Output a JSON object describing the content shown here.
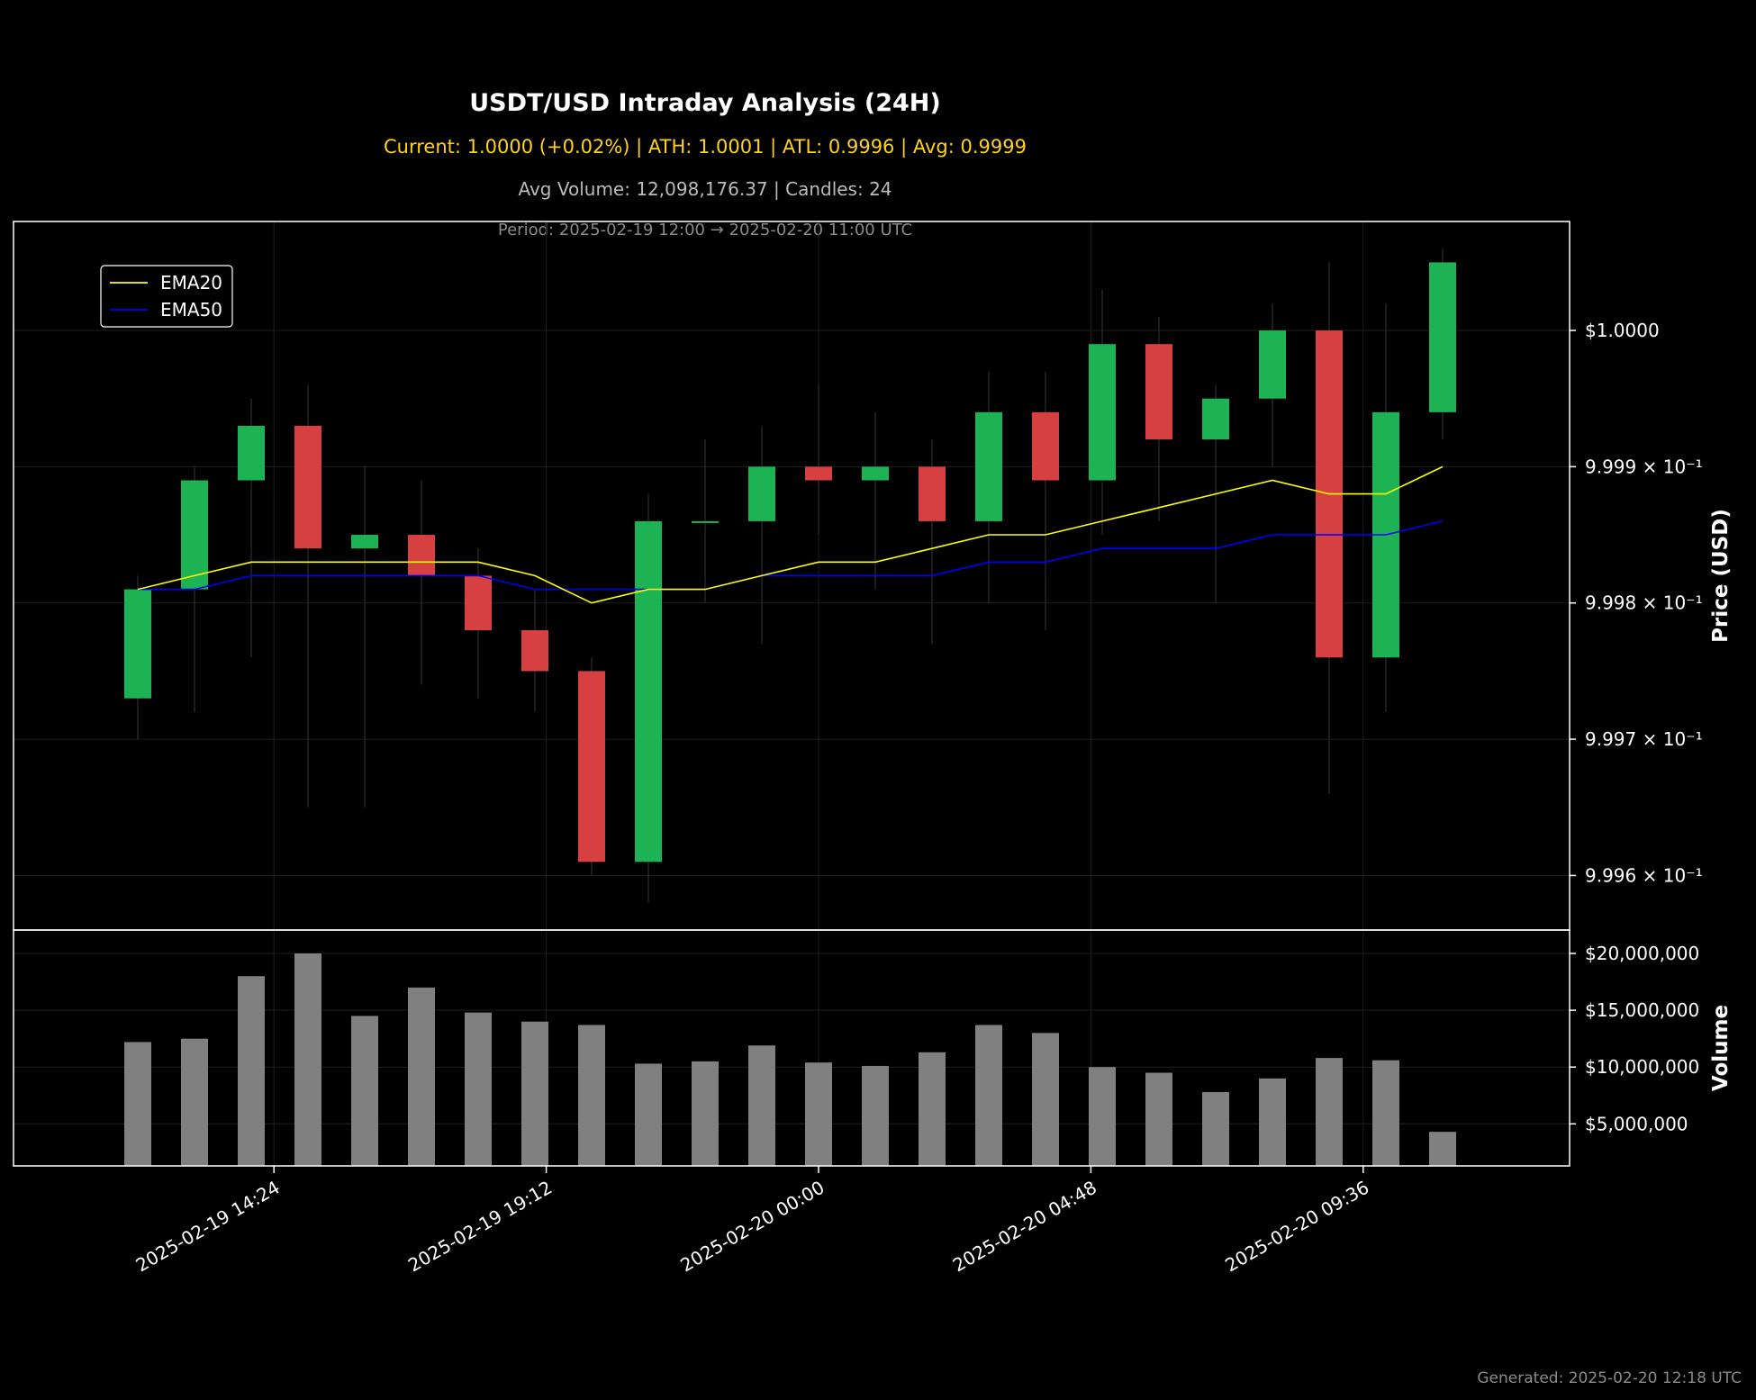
{
  "header": {
    "title": "USDT/USD Intraday Analysis (24H)",
    "subtitle": "Current: 1.0000 (+0.02%) | ATH: 1.0001 | ATL: 0.9996 | Avg: 0.9999",
    "stats": "Avg Volume: 12,098,176.37 | Candles: 24",
    "period": "Period: 2025-02-19 12:00 → 2025-02-20 11:00 UTC"
  },
  "footer": {
    "generated": "Generated: 2025-02-20 12:18 UTC"
  },
  "colors": {
    "up": "#1DB355",
    "down": "#D64040",
    "ema20": "#FFFF00",
    "ema50": "#0000FF",
    "volume": "#808080",
    "frame": "#FFFFFF",
    "grid": "#1E1E1E"
  },
  "chart_data": [
    {
      "type": "candlestick",
      "ylabel": "Price (USD)",
      "y_scale": "log",
      "ylim": [
        0.99956,
        1.00008
      ],
      "yticks": [
        {
          "value": 1.0,
          "label": "$1.0000"
        },
        {
          "value": 0.9999,
          "label": "9.999 × 10⁻¹"
        },
        {
          "value": 0.9998,
          "label": "9.998 × 10⁻¹"
        },
        {
          "value": 0.9997,
          "label": "9.997 × 10⁻¹"
        },
        {
          "value": 0.9996,
          "label": "9.996 × 10⁻¹"
        }
      ],
      "x_ticks": [
        {
          "time": "2025-02-19 14:24",
          "label": "2025-02-19 14:24"
        },
        {
          "time": "2025-02-19 19:12",
          "label": "2025-02-19 19:12"
        },
        {
          "time": "2025-02-20 00:00",
          "label": "2025-02-20 00:00"
        },
        {
          "time": "2025-02-20 04:48",
          "label": "2025-02-20 04:48"
        },
        {
          "time": "2025-02-20 09:36",
          "label": "2025-02-20 09:36"
        }
      ],
      "legend": {
        "position": "top-left",
        "entries": [
          "EMA20",
          "EMA50"
        ]
      },
      "candles": [
        {
          "time": "2025-02-19 12:00",
          "open": 0.99973,
          "high": 0.99982,
          "low": 0.9997,
          "close": 0.99981
        },
        {
          "time": "2025-02-19 13:00",
          "open": 0.99981,
          "high": 0.9999,
          "low": 0.99972,
          "close": 0.99989
        },
        {
          "time": "2025-02-19 14:00",
          "open": 0.99989,
          "high": 0.99995,
          "low": 0.99976,
          "close": 0.99993
        },
        {
          "time": "2025-02-19 15:00",
          "open": 0.99993,
          "high": 0.99996,
          "low": 0.99965,
          "close": 0.99984
        },
        {
          "time": "2025-02-19 16:00",
          "open": 0.99984,
          "high": 0.9999,
          "low": 0.99965,
          "close": 0.99985
        },
        {
          "time": "2025-02-19 17:00",
          "open": 0.99985,
          "high": 0.99989,
          "low": 0.99974,
          "close": 0.99982
        },
        {
          "time": "2025-02-19 18:00",
          "open": 0.99982,
          "high": 0.99984,
          "low": 0.99973,
          "close": 0.99978
        },
        {
          "time": "2025-02-19 19:00",
          "open": 0.99978,
          "high": 0.99981,
          "low": 0.99972,
          "close": 0.99975
        },
        {
          "time": "2025-02-19 20:00",
          "open": 0.99975,
          "high": 0.99976,
          "low": 0.9996,
          "close": 0.99961
        },
        {
          "time": "2025-02-19 21:00",
          "open": 0.99961,
          "high": 0.99988,
          "low": 0.99958,
          "close": 0.99986
        },
        {
          "time": "2025-02-19 22:00",
          "open": 0.99986,
          "high": 0.99992,
          "low": 0.9998,
          "close": 0.99986
        },
        {
          "time": "2025-02-19 23:00",
          "open": 0.99986,
          "high": 0.99993,
          "low": 0.99977,
          "close": 0.9999
        },
        {
          "time": "2025-02-20 00:00",
          "open": 0.9999,
          "high": 0.99996,
          "low": 0.99985,
          "close": 0.99989
        },
        {
          "time": "2025-02-20 01:00",
          "open": 0.99989,
          "high": 0.99994,
          "low": 0.99981,
          "close": 0.9999
        },
        {
          "time": "2025-02-20 02:00",
          "open": 0.9999,
          "high": 0.99992,
          "low": 0.99977,
          "close": 0.99986
        },
        {
          "time": "2025-02-20 03:00",
          "open": 0.99986,
          "high": 0.99997,
          "low": 0.9998,
          "close": 0.99994
        },
        {
          "time": "2025-02-20 04:00",
          "open": 0.99994,
          "high": 0.99997,
          "low": 0.99978,
          "close": 0.99989
        },
        {
          "time": "2025-02-20 05:00",
          "open": 0.99989,
          "high": 1.00003,
          "low": 0.99985,
          "close": 0.99999
        },
        {
          "time": "2025-02-20 06:00",
          "open": 0.99999,
          "high": 1.00001,
          "low": 0.99986,
          "close": 0.99992
        },
        {
          "time": "2025-02-20 07:00",
          "open": 0.99992,
          "high": 0.99996,
          "low": 0.9998,
          "close": 0.99995
        },
        {
          "time": "2025-02-20 08:00",
          "open": 0.99995,
          "high": 1.00002,
          "low": 0.9999,
          "close": 1.0
        },
        {
          "time": "2025-02-20 09:00",
          "open": 1.0,
          "high": 1.00005,
          "low": 0.99966,
          "close": 0.99976
        },
        {
          "time": "2025-02-20 10:00",
          "open": 0.99976,
          "high": 1.00002,
          "low": 0.99972,
          "close": 0.99994
        },
        {
          "time": "2025-02-20 11:00",
          "open": 0.99994,
          "high": 1.00006,
          "low": 0.99992,
          "close": 1.00005
        }
      ],
      "ema20": [
        0.99981,
        0.99982,
        0.99983,
        0.99983,
        0.99983,
        0.99983,
        0.99983,
        0.99982,
        0.9998,
        0.99981,
        0.99981,
        0.99982,
        0.99983,
        0.99983,
        0.99984,
        0.99985,
        0.99985,
        0.99986,
        0.99987,
        0.99988,
        0.99989,
        0.99988,
        0.99988,
        0.9999
      ],
      "ema50": [
        0.99981,
        0.99981,
        0.99982,
        0.99982,
        0.99982,
        0.99982,
        0.99982,
        0.99981,
        0.99981,
        0.99981,
        0.99981,
        0.99982,
        0.99982,
        0.99982,
        0.99982,
        0.99983,
        0.99983,
        0.99984,
        0.99984,
        0.99984,
        0.99985,
        0.99985,
        0.99985,
        0.99986
      ]
    },
    {
      "type": "bar",
      "ylabel": "Volume",
      "ylim": [
        1300000,
        20000000
      ],
      "yticks": [
        {
          "value": 20000000,
          "label": "$20,000,000"
        },
        {
          "value": 15000000,
          "label": "$15,000,000"
        },
        {
          "value": 10000000,
          "label": "$10,000,000"
        },
        {
          "value": 5000000,
          "label": "$5,000,000"
        }
      ],
      "values": [
        12200000,
        12500000,
        18000000,
        20000000,
        14500000,
        17000000,
        14800000,
        14000000,
        13700000,
        10300000,
        10500000,
        11900000,
        10400000,
        10100000,
        11300000,
        13700000,
        13000000,
        10000000,
        9500000,
        7800000,
        9000000,
        10800000,
        10600000,
        4300000
      ]
    }
  ]
}
